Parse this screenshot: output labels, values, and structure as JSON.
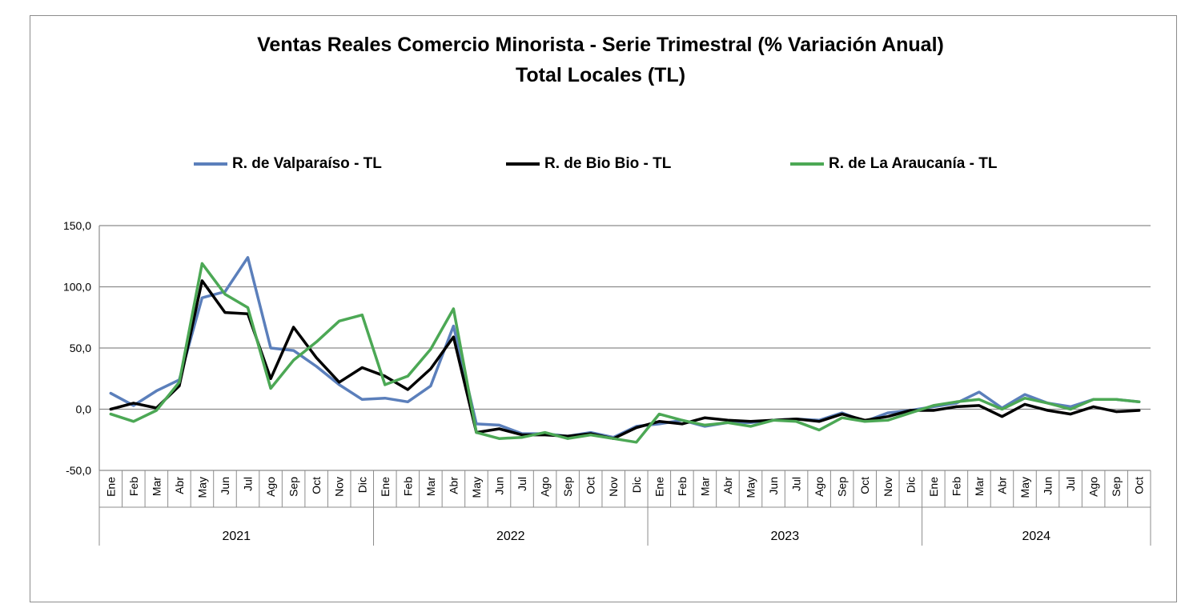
{
  "chart_data": {
    "type": "line",
    "title": "Ventas Reales Comercio Minorista - Serie Trimestral (% Variación Anual)",
    "subtitle": "Total Locales (TL)",
    "ylim": [
      -50,
      150
    ],
    "yticks": [
      "150,0",
      "100,0",
      "50,0",
      "0,0",
      "-50,0"
    ],
    "ytick_values": [
      150,
      100,
      50,
      0,
      -50
    ],
    "grid": true,
    "legend_position": "top",
    "years": [
      "2021",
      "2022",
      "2023",
      "2024"
    ],
    "categories": [
      "Ene",
      "Feb",
      "Mar",
      "Abr",
      "May",
      "Jun",
      "Jul",
      "Ago",
      "Sep",
      "Oct",
      "Nov",
      "Dic",
      "Ene",
      "Feb",
      "Mar",
      "Abr",
      "May",
      "Jun",
      "Jul",
      "Ago",
      "Sep",
      "Oct",
      "Nov",
      "Dic",
      "Ene",
      "Feb",
      "Mar",
      "Abr",
      "May",
      "Jun",
      "Jul",
      "Ago",
      "Sep",
      "Oct",
      "Nov",
      "Dic",
      "Ene",
      "Feb",
      "Mar",
      "Abr",
      "May",
      "Jun",
      "Jul",
      "Ago",
      "Sep",
      "Oct"
    ],
    "series": [
      {
        "name": "R. de Valparaíso - TL",
        "color": "#5b7fbb",
        "values": [
          13,
          3,
          15,
          24,
          91,
          96,
          124,
          50,
          48,
          35,
          20,
          8,
          9,
          6,
          19,
          68,
          -12,
          -13,
          -20,
          -20,
          -22,
          -19,
          -23,
          -14,
          -12,
          -9,
          -14,
          -11,
          -11,
          -9,
          -8,
          -9,
          -3,
          -10,
          -3,
          -1,
          2,
          5,
          14,
          1,
          12,
          5,
          2,
          8,
          8,
          6
        ]
      },
      {
        "name": "R. de Bio Bio - TL",
        "color": "#000000",
        "values": [
          0,
          5,
          1,
          19,
          105,
          79,
          78,
          25,
          67,
          42,
          22,
          34,
          27,
          16,
          33,
          59,
          -19,
          -16,
          -21,
          -21,
          -22,
          -20,
          -24,
          -15,
          -10,
          -12,
          -7,
          -9,
          -10,
          -9,
          -8,
          -10,
          -4,
          -9,
          -6,
          -1,
          -1,
          2,
          3,
          -6,
          4,
          -1,
          -4,
          2,
          -2,
          -1
        ]
      },
      {
        "name": "R. de La Araucanía - TL",
        "color": "#4ca855",
        "values": [
          -4,
          -10,
          -1,
          22,
          119,
          94,
          83,
          17,
          40,
          55,
          72,
          77,
          20,
          27,
          49,
          82,
          -19,
          -24,
          -23,
          -19,
          -24,
          -21,
          -24,
          -27,
          -4,
          -9,
          -13,
          -11,
          -14,
          -9,
          -10,
          -17,
          -7,
          -10,
          -9,
          -3,
          3,
          6,
          8,
          0,
          9,
          5,
          0,
          8,
          8,
          6
        ]
      }
    ]
  }
}
